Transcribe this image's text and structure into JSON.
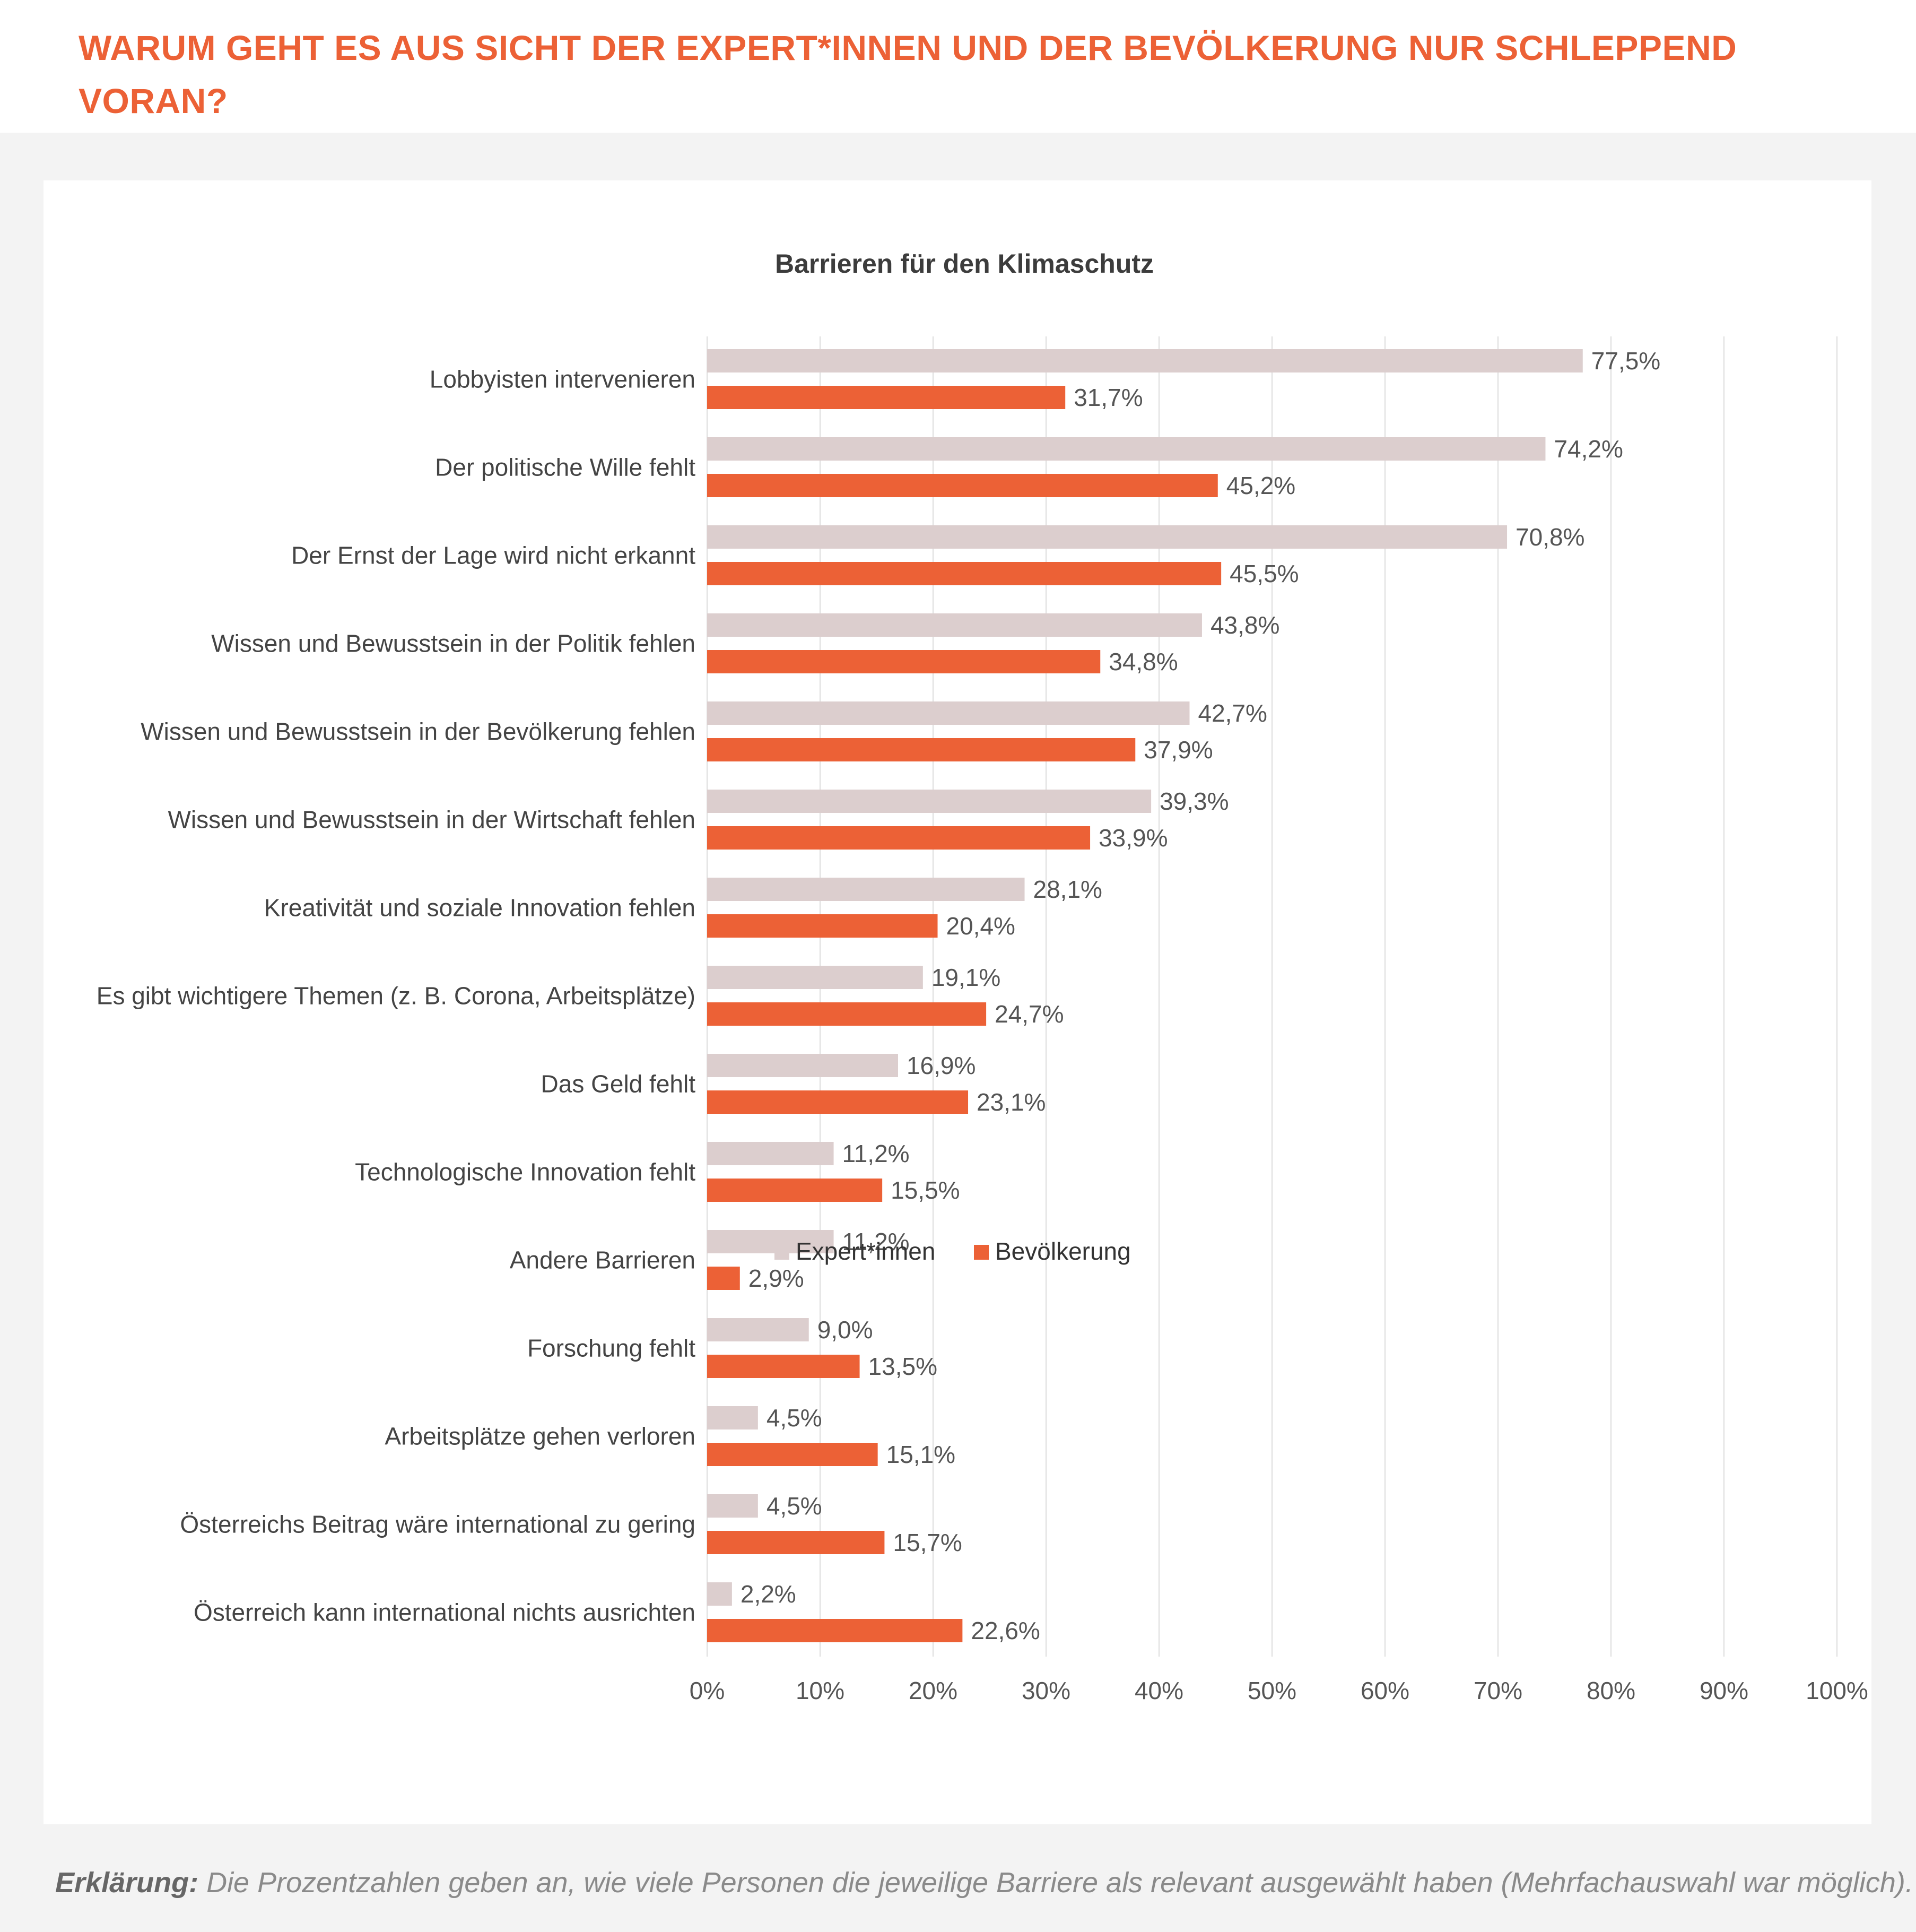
{
  "page": {
    "headline": "WARUM GEHT ES AUS SICHT DER EXPERT*INNEN UND DER BEVÖLKERUNG NUR SCHLEPPEND VORAN?",
    "footnote_lead": "Erklärung:",
    "footnote_text": " Die Prozentzahlen geben an, wie viele Personen die jeweilige Barriere als relevant ausgewählt haben (Mehrfachauswahl war möglich)."
  },
  "colors": {
    "accent": "#ec6136",
    "expert": "#dccece",
    "population": "#ec6136",
    "grid": "#dddddd",
    "text": "#555555",
    "background_band": "#f3f3f3"
  },
  "chart_data": {
    "type": "bar",
    "orientation": "horizontal",
    "title": "Barrieren für den Klimaschutz",
    "categories": [
      "Lobbyisten intervenieren",
      "Der politische Wille fehlt",
      "Der Ernst der Lage wird nicht erkannt",
      "Wissen und Bewusstsein in der Politik fehlen",
      "Wissen und Bewusstsein in der Bevölkerung fehlen",
      "Wissen und Bewusstsein in der Wirtschaft fehlen",
      "Kreativität und soziale Innovation fehlen",
      "Es gibt wichtigere Themen (z. B. Corona, Arbeitsplätze)",
      "Das Geld fehlt",
      "Technologische Innovation fehlt",
      "Andere Barrieren",
      "Forschung fehlt",
      "Arbeitsplätze gehen verloren",
      "Österreichs Beitrag wäre international zu gering",
      "Österreich kann international nichts ausrichten"
    ],
    "series": [
      {
        "name": "Expert*innen",
        "color": "#dccece",
        "values": [
          77.5,
          74.2,
          70.8,
          43.8,
          42.7,
          39.3,
          28.1,
          19.1,
          16.9,
          11.2,
          11.2,
          9.0,
          4.5,
          4.5,
          2.2
        ],
        "labels": [
          "77,5%",
          "74,2%",
          "70,8%",
          "43,8%",
          "42,7%",
          "39,3%",
          "28,1%",
          "19,1%",
          "16,9%",
          "11,2%",
          "11,2%",
          "9,0%",
          "4,5%",
          "4,5%",
          "2,2%"
        ]
      },
      {
        "name": "Bevölkerung",
        "color": "#ec6136",
        "values": [
          31.7,
          45.2,
          45.5,
          34.8,
          37.9,
          33.9,
          20.4,
          24.7,
          23.1,
          15.5,
          2.9,
          13.5,
          15.1,
          15.7,
          22.6
        ],
        "labels": [
          "31,7%",
          "45,2%",
          "45,5%",
          "34,8%",
          "37,9%",
          "33,9%",
          "20,4%",
          "24,7%",
          "23,1%",
          "15,5%",
          "2,9%",
          "13,5%",
          "15,1%",
          "15,7%",
          "22,6%"
        ]
      }
    ],
    "xlim": [
      0,
      100
    ],
    "xticks": [
      0,
      10,
      20,
      30,
      40,
      50,
      60,
      70,
      80,
      90,
      100
    ],
    "xtick_labels": [
      "0%",
      "10%",
      "20%",
      "30%",
      "40%",
      "50%",
      "60%",
      "70%",
      "80%",
      "90%",
      "100%"
    ],
    "grid": true,
    "legend_position": "bottom-center"
  }
}
